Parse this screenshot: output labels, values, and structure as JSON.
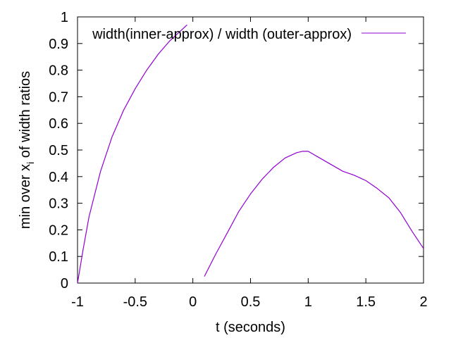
{
  "chart_data": {
    "type": "line",
    "xlabel": "t (seconds)",
    "ylabel_main": "min over x",
    "ylabel_sub": "i",
    "ylabel_rest": " of width ratios",
    "xlim": [
      -1,
      2
    ],
    "ylim": [
      0,
      1
    ],
    "xticks": [
      "-1",
      "-0.5",
      "0",
      "0.5",
      "1",
      "1.5",
      "2"
    ],
    "yticks": [
      "0",
      "0.1",
      "0.2",
      "0.3",
      "0.4",
      "0.5",
      "0.6",
      "0.7",
      "0.8",
      "0.9",
      "1"
    ],
    "grid": false,
    "legend_position": "top-right",
    "series": [
      {
        "name": "width(inner-approx) / width (outer-approx)",
        "color": "#9400d3",
        "segments": [
          [
            [
              -1.0,
              0.0
            ],
            [
              -0.95,
              0.13
            ],
            [
              -0.9,
              0.25
            ],
            [
              -0.8,
              0.42
            ],
            [
              -0.7,
              0.55
            ],
            [
              -0.6,
              0.65
            ],
            [
              -0.5,
              0.73
            ],
            [
              -0.4,
              0.8
            ],
            [
              -0.3,
              0.86
            ],
            [
              -0.2,
              0.91
            ],
            [
              -0.1,
              0.95
            ],
            [
              -0.05,
              0.97
            ]
          ],
          [
            [
              0.1,
              0.025
            ],
            [
              0.2,
              0.11
            ],
            [
              0.3,
              0.19
            ],
            [
              0.4,
              0.27
            ],
            [
              0.5,
              0.335
            ],
            [
              0.6,
              0.39
            ],
            [
              0.7,
              0.435
            ],
            [
              0.8,
              0.47
            ],
            [
              0.9,
              0.49
            ],
            [
              0.95,
              0.495
            ],
            [
              1.0,
              0.495
            ],
            [
              1.1,
              0.47
            ],
            [
              1.2,
              0.445
            ],
            [
              1.3,
              0.42
            ],
            [
              1.4,
              0.405
            ],
            [
              1.5,
              0.385
            ],
            [
              1.6,
              0.355
            ],
            [
              1.7,
              0.32
            ],
            [
              1.8,
              0.265
            ],
            [
              1.9,
              0.195
            ],
            [
              2.0,
              0.13
            ]
          ]
        ]
      }
    ]
  }
}
